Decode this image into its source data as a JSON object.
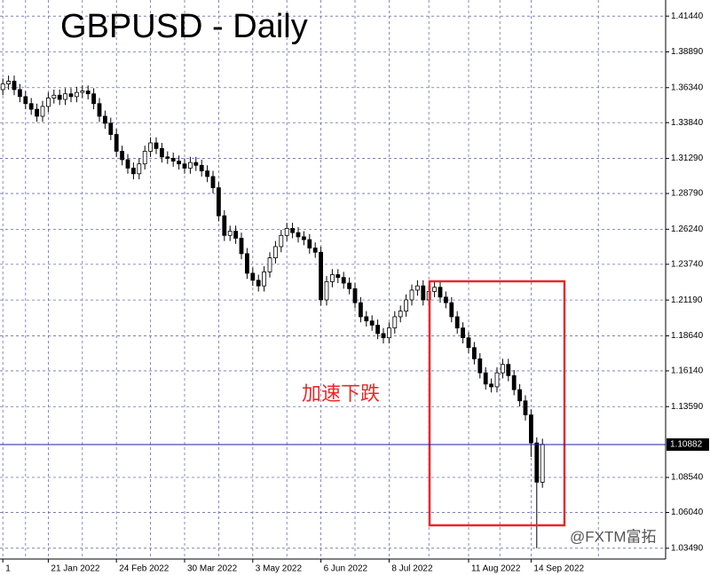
{
  "chart_data": {
    "type": "candlestick",
    "title": "GBPUSD - Daily",
    "annotation": "加速下跌",
    "watermark": "@FXTM富拓",
    "categories": [
      "1",
      null,
      null,
      null,
      null,
      null,
      null,
      null,
      "21 Jan 2022",
      null,
      null,
      null,
      null,
      null,
      null,
      null,
      null,
      null,
      null,
      null,
      "24 Feb 2022",
      null,
      null,
      null,
      null,
      null,
      null,
      null,
      null,
      null,
      null,
      null,
      "30 Mar 2022",
      null,
      null,
      null,
      null,
      null,
      null,
      null,
      null,
      null,
      null,
      null,
      "3 May 2022",
      null,
      null,
      null,
      null,
      null,
      null,
      null,
      null,
      null,
      null,
      null,
      "6 Jun 2022",
      null,
      null,
      null,
      null,
      null,
      null,
      null,
      null,
      null,
      null,
      null,
      "8 Jul 2022",
      null,
      null,
      null,
      null,
      null,
      null,
      null,
      null,
      null,
      null,
      null,
      null,
      null,
      "11 Aug 2022",
      null,
      null,
      null,
      null,
      null,
      null,
      null,
      null,
      null,
      null,
      "14 Sep 2022",
      null,
      null
    ],
    "open": [
      1.362,
      1.366,
      1.368,
      1.362,
      1.357,
      1.352,
      1.348,
      1.343,
      1.35,
      1.356,
      1.358,
      1.355,
      1.359,
      1.357,
      1.36,
      1.361,
      1.359,
      1.352,
      1.343,
      1.338,
      1.33,
      1.318,
      1.312,
      1.306,
      1.302,
      1.309,
      1.318,
      1.324,
      1.32,
      1.314,
      1.313,
      1.311,
      1.309,
      1.306,
      1.31,
      1.308,
      1.304,
      1.3,
      1.292,
      1.272,
      1.258,
      1.261,
      1.256,
      1.245,
      1.231,
      1.226,
      1.222,
      1.232,
      1.242,
      1.25,
      1.258,
      1.263,
      1.26,
      1.257,
      1.255,
      1.249,
      1.246,
      1.212,
      1.225,
      1.23,
      1.228,
      1.224,
      1.22,
      1.21,
      1.2,
      1.197,
      1.194,
      1.188,
      1.185,
      1.192,
      1.2,
      1.204,
      1.212,
      1.219,
      1.222,
      1.212,
      1.218,
      1.221,
      1.214,
      1.21,
      1.2,
      1.192,
      1.185,
      1.178,
      1.17,
      1.16,
      1.152,
      1.15,
      1.16,
      1.166,
      1.158,
      1.148,
      1.14,
      1.13,
      1.11,
      1.082
    ],
    "high": [
      1.37,
      1.372,
      1.372,
      1.366,
      1.361,
      1.356,
      1.352,
      1.354,
      1.36,
      1.362,
      1.362,
      1.363,
      1.363,
      1.364,
      1.365,
      1.365,
      1.363,
      1.356,
      1.347,
      1.342,
      1.334,
      1.322,
      1.316,
      1.31,
      1.313,
      1.322,
      1.328,
      1.328,
      1.324,
      1.318,
      1.317,
      1.315,
      1.313,
      1.314,
      1.314,
      1.312,
      1.308,
      1.304,
      1.296,
      1.276,
      1.265,
      1.265,
      1.26,
      1.249,
      1.235,
      1.23,
      1.236,
      1.246,
      1.254,
      1.262,
      1.267,
      1.267,
      1.264,
      1.261,
      1.259,
      1.253,
      1.25,
      1.229,
      1.234,
      1.234,
      1.232,
      1.228,
      1.224,
      1.214,
      1.204,
      1.201,
      1.198,
      1.192,
      1.196,
      1.204,
      1.208,
      1.216,
      1.223,
      1.226,
      1.226,
      1.222,
      1.225,
      1.225,
      1.218,
      1.214,
      1.204,
      1.196,
      1.189,
      1.182,
      1.174,
      1.164,
      1.156,
      1.164,
      1.17,
      1.17,
      1.162,
      1.152,
      1.144,
      1.134,
      1.114,
      1.113
    ],
    "low": [
      1.358,
      1.362,
      1.358,
      1.353,
      1.348,
      1.344,
      1.339,
      1.339,
      1.346,
      1.352,
      1.351,
      1.351,
      1.353,
      1.353,
      1.356,
      1.355,
      1.348,
      1.339,
      1.334,
      1.326,
      1.314,
      1.308,
      1.302,
      1.298,
      1.298,
      1.305,
      1.314,
      1.316,
      1.31,
      1.309,
      1.307,
      1.305,
      1.302,
      1.302,
      1.304,
      1.3,
      1.296,
      1.288,
      1.268,
      1.254,
      1.254,
      1.252,
      1.241,
      1.227,
      1.222,
      1.218,
      1.218,
      1.228,
      1.238,
      1.246,
      1.254,
      1.256,
      1.253,
      1.251,
      1.245,
      1.242,
      1.208,
      1.208,
      1.221,
      1.224,
      1.22,
      1.216,
      1.206,
      1.196,
      1.193,
      1.19,
      1.184,
      1.181,
      1.181,
      1.188,
      1.196,
      1.2,
      1.208,
      1.215,
      1.208,
      1.208,
      1.214,
      1.21,
      1.206,
      1.196,
      1.188,
      1.181,
      1.174,
      1.166,
      1.156,
      1.148,
      1.146,
      1.146,
      1.156,
      1.154,
      1.144,
      1.136,
      1.126,
      1.1,
      1.0349,
      1.078
    ],
    "close": [
      1.366,
      1.368,
      1.362,
      1.357,
      1.352,
      1.348,
      1.343,
      1.35,
      1.356,
      1.358,
      1.355,
      1.359,
      1.357,
      1.36,
      1.361,
      1.359,
      1.352,
      1.343,
      1.338,
      1.33,
      1.318,
      1.312,
      1.306,
      1.302,
      1.309,
      1.318,
      1.324,
      1.32,
      1.314,
      1.313,
      1.311,
      1.309,
      1.306,
      1.31,
      1.308,
      1.304,
      1.3,
      1.292,
      1.272,
      1.258,
      1.261,
      1.256,
      1.245,
      1.231,
      1.226,
      1.222,
      1.232,
      1.242,
      1.25,
      1.258,
      1.263,
      1.26,
      1.257,
      1.255,
      1.249,
      1.246,
      1.212,
      1.225,
      1.23,
      1.228,
      1.224,
      1.22,
      1.21,
      1.2,
      1.197,
      1.194,
      1.188,
      1.185,
      1.192,
      1.2,
      1.204,
      1.212,
      1.219,
      1.222,
      1.212,
      1.218,
      1.221,
      1.214,
      1.21,
      1.2,
      1.192,
      1.185,
      1.178,
      1.17,
      1.16,
      1.152,
      1.15,
      1.16,
      1.166,
      1.158,
      1.148,
      1.14,
      1.13,
      1.11,
      1.082,
      1.109
    ],
    "ylim": [
      1.0272,
      1.4259
    ],
    "yticks": [
      {
        "value": 1.4144,
        "label": "1.41440"
      },
      {
        "value": 1.3889,
        "label": "1.38890"
      },
      {
        "value": 1.3634,
        "label": "1.36340"
      },
      {
        "value": 1.3384,
        "label": "1.33840"
      },
      {
        "value": 1.3129,
        "label": "1.31290"
      },
      {
        "value": 1.2879,
        "label": "1.28790"
      },
      {
        "value": 1.2624,
        "label": "1.26240"
      },
      {
        "value": 1.2374,
        "label": "1.23740"
      },
      {
        "value": 1.2119,
        "label": "1.21190"
      },
      {
        "value": 1.1864,
        "label": "1.18640"
      },
      {
        "value": 1.1614,
        "label": "1.16140"
      },
      {
        "value": 1.1359,
        "label": "1.13590"
      },
      {
        "value": 1.0854,
        "label": "1.08540"
      },
      {
        "value": 1.0604,
        "label": "1.06040"
      },
      {
        "value": 1.0349,
        "label": "1.03490"
      }
    ],
    "last_price": 1.10882,
    "grid": true,
    "up_color": "#ffffff",
    "down_color": "#000000",
    "grid_color": "#6b6bb8",
    "last_price_color": "#1c1ca8"
  }
}
